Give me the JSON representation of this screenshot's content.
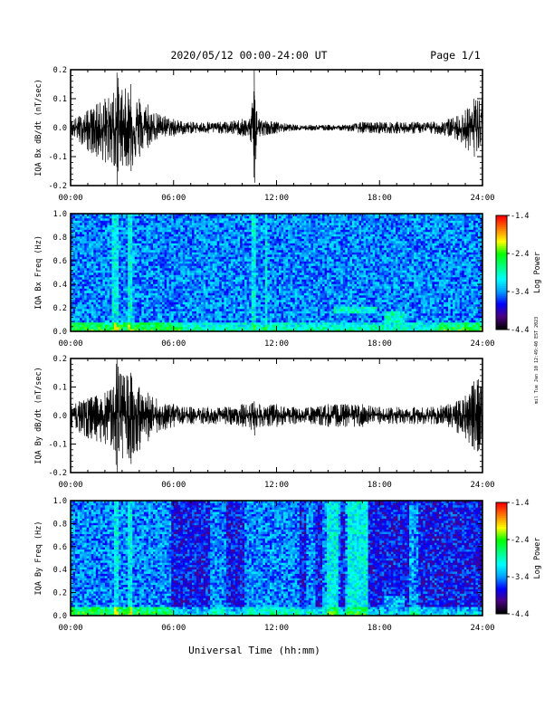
{
  "header": {
    "title": "2020/05/12  00:00-24:00 UT",
    "page": "Page 1/1"
  },
  "footer": {
    "xlabel": "Universal Time (hh:mm)"
  },
  "side_note": "mil Tue Jan 10 12:49:40 EST 2023",
  "colors": {
    "trace": "#000000",
    "colormap": [
      "#000000",
      "#4b0082",
      "#0000ff",
      "#00a0ff",
      "#00ffff",
      "#00ff80",
      "#00ff00",
      "#ffff00",
      "#ff8000",
      "#ff0000"
    ]
  },
  "chart_data": [
    {
      "type": "line",
      "id": "bx_dbdt",
      "ylabel": "IQA Bx dB/dt (nT/sec)",
      "ylim": [
        -0.2,
        0.2
      ],
      "yticks": [
        "-0.2",
        "-0.1",
        "0.0",
        "0.1",
        "0.2"
      ],
      "xlim_hours": [
        0,
        24
      ],
      "xticks": [
        "00:00",
        "06:00",
        "12:00",
        "18:00",
        "24:00"
      ],
      "envelope": {
        "hours": [
          0,
          0.5,
          1,
          1.5,
          2,
          2.5,
          2.7,
          3,
          3.5,
          4,
          4.5,
          5,
          5.5,
          6,
          7,
          8,
          9,
          10,
          10.5,
          10.7,
          11,
          12,
          13,
          14,
          15,
          16,
          17,
          18,
          19,
          20,
          21,
          22,
          22.5,
          23,
          23.5,
          24
        ],
        "upper": [
          0.03,
          0.04,
          0.06,
          0.08,
          0.1,
          0.12,
          0.19,
          0.13,
          0.15,
          0.1,
          0.08,
          0.05,
          0.04,
          0.03,
          0.02,
          0.02,
          0.02,
          0.03,
          0.03,
          0.2,
          0.03,
          0.02,
          0.01,
          0.01,
          0.01,
          0.01,
          0.02,
          0.02,
          0.02,
          0.02,
          0.02,
          0.03,
          0.04,
          0.06,
          0.1,
          0.12
        ],
        "lower": [
          -0.03,
          -0.05,
          -0.08,
          -0.1,
          -0.12,
          -0.13,
          -0.2,
          -0.13,
          -0.15,
          -0.1,
          -0.07,
          -0.04,
          -0.03,
          -0.03,
          -0.02,
          -0.02,
          -0.02,
          -0.03,
          -0.05,
          -0.19,
          -0.03,
          -0.02,
          -0.01,
          -0.01,
          -0.01,
          -0.01,
          -0.02,
          -0.02,
          -0.02,
          -0.02,
          -0.02,
          -0.03,
          -0.04,
          -0.07,
          -0.1,
          -0.11
        ]
      }
    },
    {
      "type": "heatmap",
      "id": "bx_freq",
      "ylabel": "IQA Bx Freq (Hz)",
      "ylim": [
        0,
        1
      ],
      "yticks": [
        "0.0",
        "0.2",
        "0.4",
        "0.6",
        "0.8",
        "1.0"
      ],
      "xlim_hours": [
        0,
        24
      ],
      "xticks": [
        "00:00",
        "06:00",
        "12:00",
        "18:00",
        "24:00"
      ],
      "colorbar": {
        "label": "Log Power",
        "range": [
          -4.4,
          -1.4
        ],
        "ticks": [
          "-1.4",
          "-2.4",
          "-3.4",
          "-4.4"
        ]
      },
      "features": {
        "bright_columns_hours": [
          2.5,
          2.7,
          3.5,
          10.7,
          11.4
        ],
        "bright_patches": [
          {
            "h0": 15.3,
            "h1": 17.8,
            "f0": 0.15,
            "f1": 0.22
          },
          {
            "h0": 18.3,
            "h1": 19.5,
            "f0": 0.08,
            "f1": 0.17
          }
        ],
        "low_freq_active_hours": [
          [
            0,
            6.5
          ],
          [
            21.5,
            24
          ]
        ]
      }
    },
    {
      "type": "line",
      "id": "by_dbdt",
      "ylabel": "IQA By dB/dt (nT/sec)",
      "ylim": [
        -0.2,
        0.2
      ],
      "yticks": [
        "-0.2",
        "-0.1",
        "0.0",
        "0.1",
        "0.2"
      ],
      "xlim_hours": [
        0,
        24
      ],
      "xticks": [
        "00:00",
        "06:00",
        "12:00",
        "18:00",
        "24:00"
      ],
      "envelope": {
        "hours": [
          0,
          0.5,
          1,
          1.5,
          2,
          2.5,
          2.7,
          3,
          3.5,
          4,
          4.5,
          5,
          5.5,
          6,
          6.5,
          7,
          8,
          9,
          10,
          10.5,
          10.7,
          11,
          12,
          13,
          14,
          15,
          16,
          17,
          18,
          19,
          20,
          21,
          22,
          22.5,
          23,
          23.5,
          24
        ],
        "upper": [
          0.04,
          0.05,
          0.06,
          0.07,
          0.08,
          0.1,
          0.2,
          0.14,
          0.15,
          0.1,
          0.08,
          0.06,
          0.04,
          0.04,
          0.03,
          0.03,
          0.03,
          0.03,
          0.04,
          0.04,
          0.05,
          0.04,
          0.04,
          0.03,
          0.03,
          0.04,
          0.04,
          0.04,
          0.03,
          0.03,
          0.03,
          0.03,
          0.04,
          0.05,
          0.07,
          0.12,
          0.15
        ],
        "lower": [
          -0.04,
          -0.06,
          -0.08,
          -0.09,
          -0.1,
          -0.12,
          -0.2,
          -0.15,
          -0.17,
          -0.12,
          -0.09,
          -0.06,
          -0.05,
          -0.04,
          -0.03,
          -0.03,
          -0.03,
          -0.03,
          -0.04,
          -0.05,
          -0.07,
          -0.04,
          -0.04,
          -0.03,
          -0.03,
          -0.04,
          -0.04,
          -0.04,
          -0.03,
          -0.03,
          -0.03,
          -0.03,
          -0.04,
          -0.06,
          -0.08,
          -0.12,
          -0.14
        ]
      }
    },
    {
      "type": "heatmap",
      "id": "by_freq",
      "ylabel": "IQA By Freq (Hz)",
      "ylim": [
        0,
        1
      ],
      "yticks": [
        "0.0",
        "0.2",
        "0.4",
        "0.6",
        "0.8",
        "1.0"
      ],
      "xlim_hours": [
        0,
        24
      ],
      "xticks": [
        "00:00",
        "06:00",
        "12:00",
        "18:00",
        "24:00"
      ],
      "colorbar": {
        "label": "Log Power",
        "range": [
          -4.4,
          -1.4
        ],
        "ticks": [
          "-1.4",
          "-2.4",
          "-3.4",
          "-4.4"
        ]
      },
      "features": {
        "dark_bands_hours": [
          [
            5.9,
            8.1
          ],
          [
            9.1,
            10.1
          ],
          [
            13.4,
            13.7
          ],
          [
            14.3,
            14.6
          ],
          [
            15.7,
            16.0
          ],
          [
            17.4,
            20.0
          ],
          [
            20.3,
            24.0
          ]
        ],
        "bright_bands_hours": [
          [
            14.9,
            15.6
          ],
          [
            16.1,
            17.3
          ]
        ],
        "bright_columns_hours": [
          2.7,
          3.5,
          19.9
        ],
        "bright_patches": [
          {
            "h0": 18.3,
            "h1": 19.4,
            "f0": 0.08,
            "f1": 0.17
          }
        ],
        "low_freq_active_hours": [
          [
            0,
            6
          ]
        ]
      }
    }
  ]
}
